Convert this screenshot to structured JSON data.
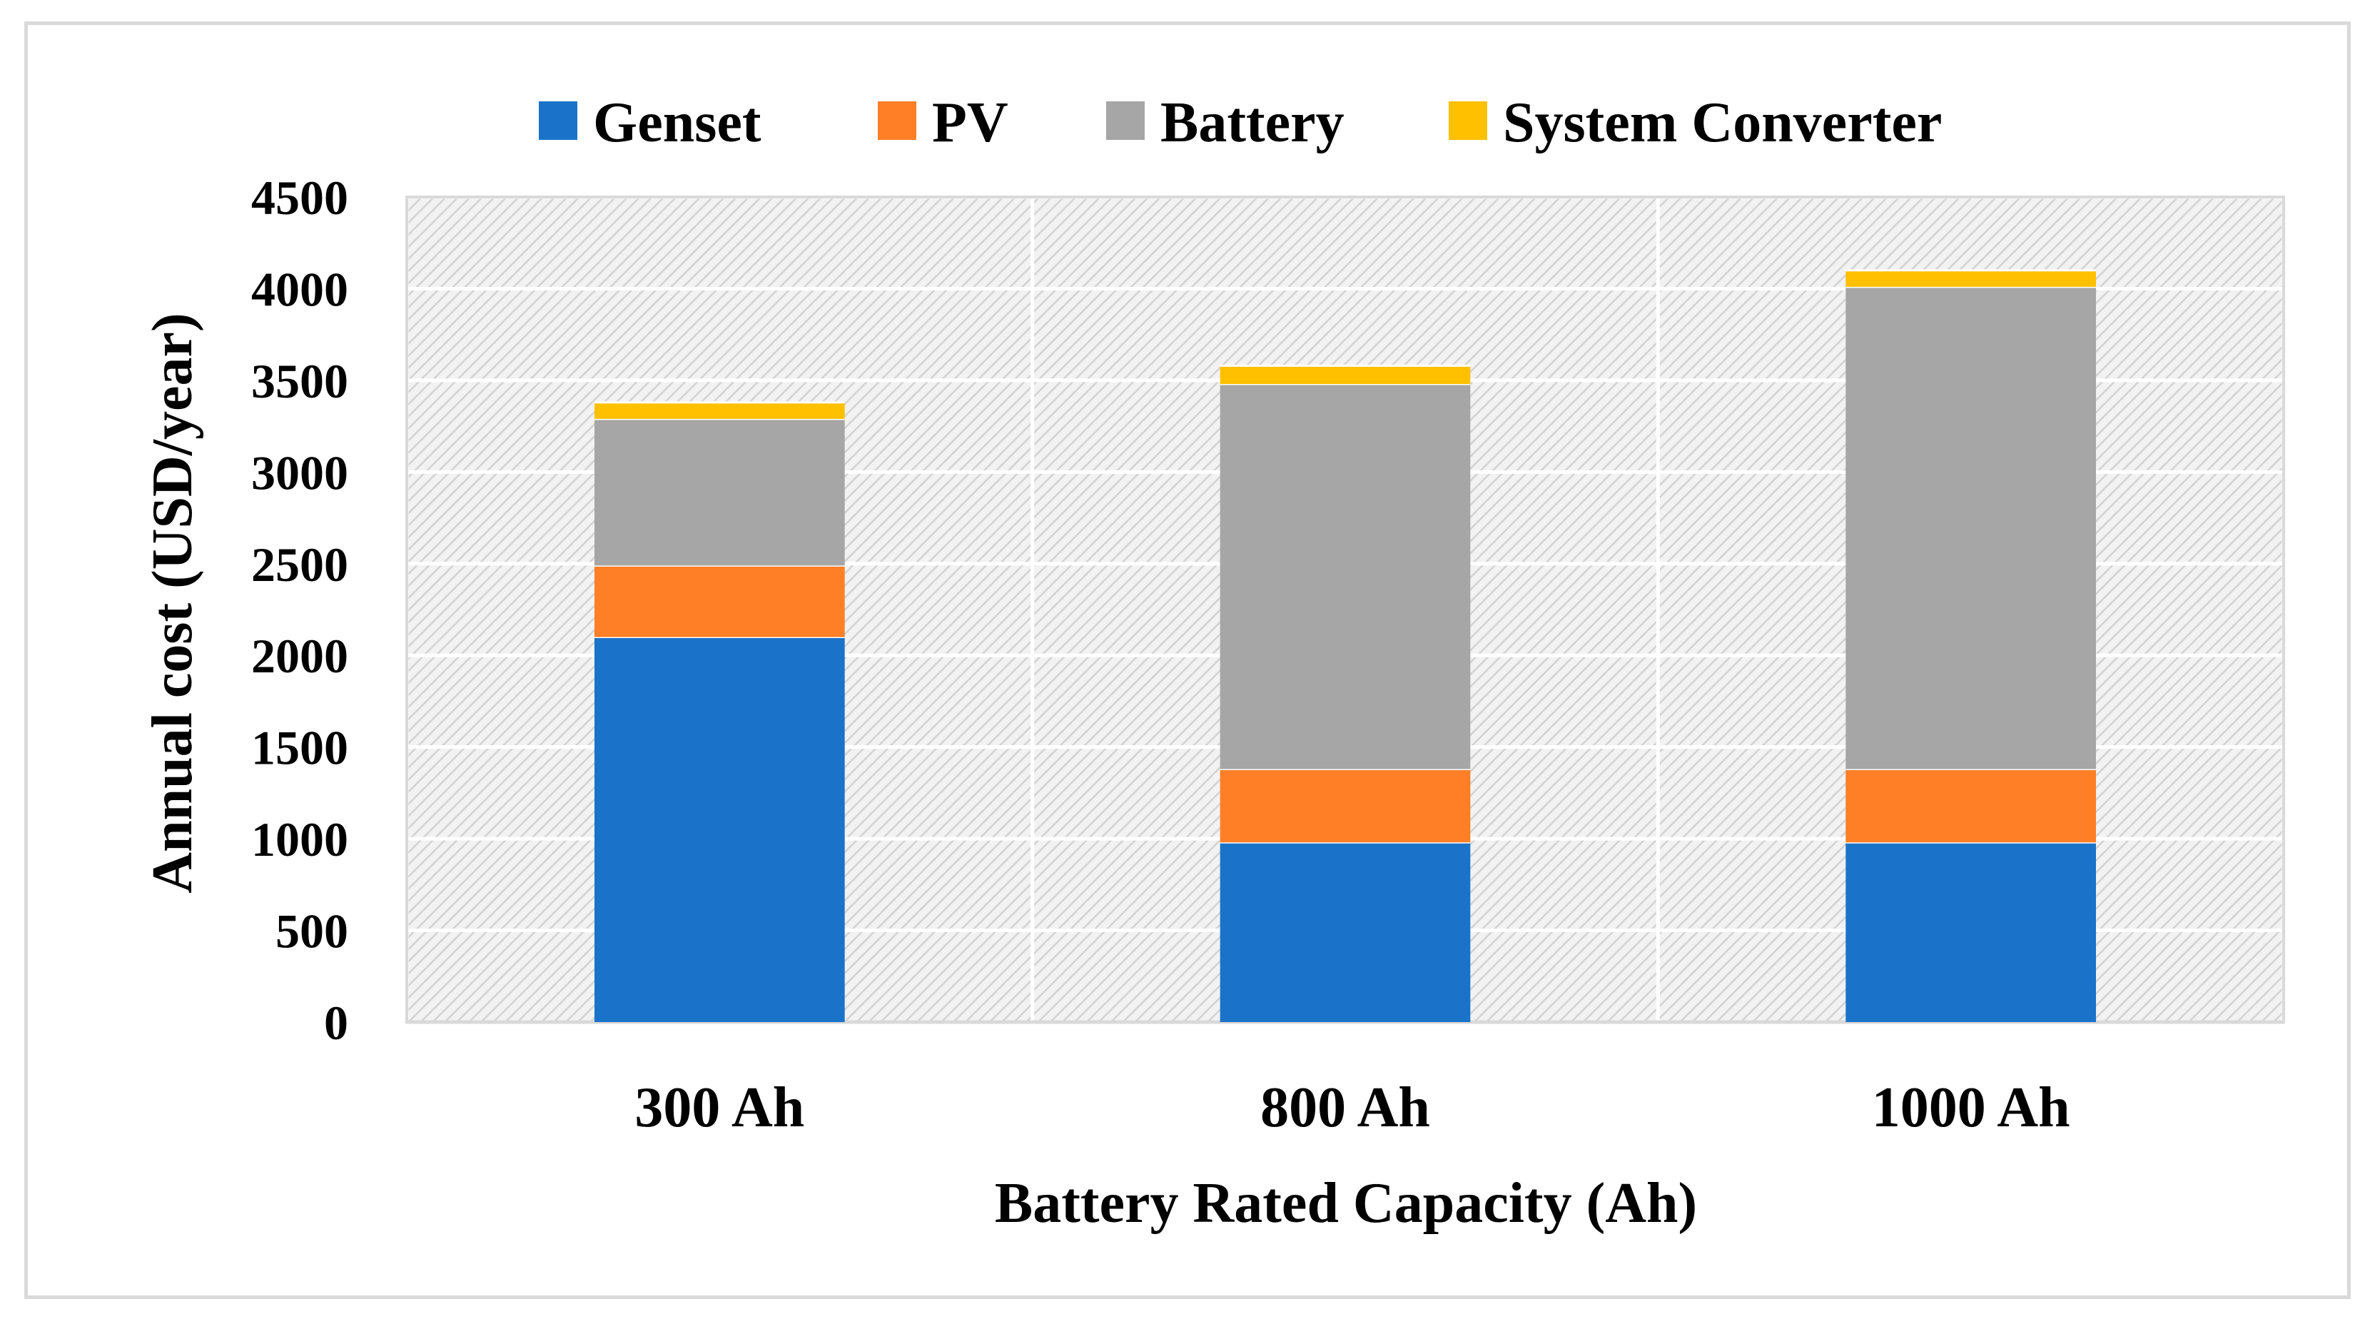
{
  "chart_data": {
    "type": "bar",
    "stacked": true,
    "title": "",
    "xlabel": "Battery Rated Capacity (Ah)",
    "ylabel": "Annual cost (USD/year)",
    "ylim": [
      0,
      4500
    ],
    "ytick_step": 500,
    "yticks": [
      "0",
      "500",
      "1000",
      "1500",
      "2000",
      "2500",
      "3000",
      "3500",
      "4000",
      "4500"
    ],
    "categories": [
      "300 Ah",
      "800 Ah",
      "1000 Ah"
    ],
    "grid": true,
    "legend_position": "top",
    "series": [
      {
        "name": "Genset",
        "color": "#1a73c9",
        "values": [
          2100,
          980,
          980
        ]
      },
      {
        "name": "PV",
        "color": "#ff7f27",
        "values": [
          390,
          400,
          400
        ]
      },
      {
        "name": "Battery",
        "color": "#a6a6a6",
        "values": [
          800,
          2100,
          2630
        ]
      },
      {
        "name": "System Converter",
        "color": "#ffc000",
        "values": [
          90,
          100,
          90
        ]
      }
    ]
  }
}
